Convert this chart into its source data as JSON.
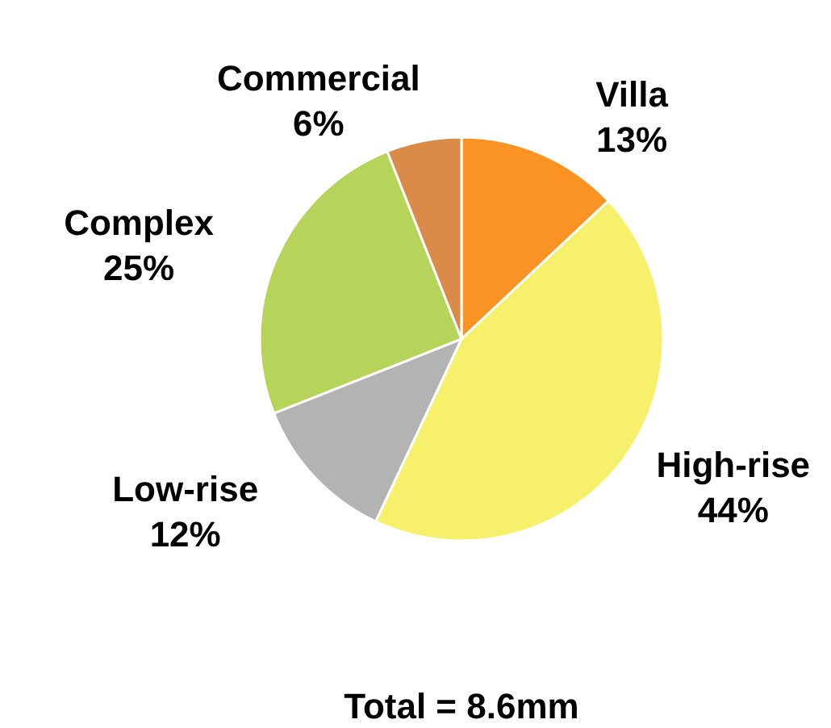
{
  "chart_data": {
    "type": "pie",
    "categories": [
      "Villa",
      "High-rise",
      "Low-rise",
      "Complex",
      "Commercial"
    ],
    "values": [
      13,
      44,
      12,
      25,
      6
    ],
    "colors": [
      "#fb9224",
      "#f6f06a",
      "#b3b3b3",
      "#b6d35a",
      "#d98b47"
    ],
    "value_labels": [
      "13%",
      "44%",
      "12%",
      "25%",
      "6%"
    ],
    "annotations": [
      "Total = 8.6mm"
    ]
  }
}
